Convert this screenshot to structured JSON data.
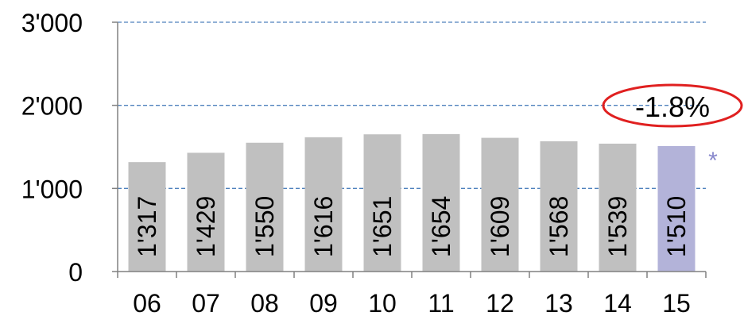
{
  "chart_data": {
    "type": "bar",
    "categories": [
      "06",
      "07",
      "08",
      "09",
      "10",
      "11",
      "12",
      "13",
      "14",
      "15"
    ],
    "values": [
      1317,
      1429,
      1550,
      1616,
      1651,
      1654,
      1609,
      1568,
      1539,
      1510
    ],
    "value_labels": [
      "1'317",
      "1'429",
      "1'550",
      "1'616",
      "1'651",
      "1'654",
      "1'609",
      "1'568",
      "1'539",
      "1'510"
    ],
    "ylim": [
      0,
      3000
    ],
    "yticks": [
      0,
      1000,
      2000,
      3000
    ],
    "ytick_labels": [
      "0",
      "1'000",
      "2'000",
      "3'000"
    ],
    "grid": true,
    "colors": {
      "bar": "#c0c0c0",
      "highlight_bar": "#b3b3d9",
      "gridline": "#4f81bd",
      "axis": "#808080",
      "callout_ring": "#e02020",
      "asterisk": "#8888cc"
    },
    "highlight_index": 9,
    "annotations": {
      "change_label": "-1.8%",
      "asterisk": "*"
    }
  }
}
